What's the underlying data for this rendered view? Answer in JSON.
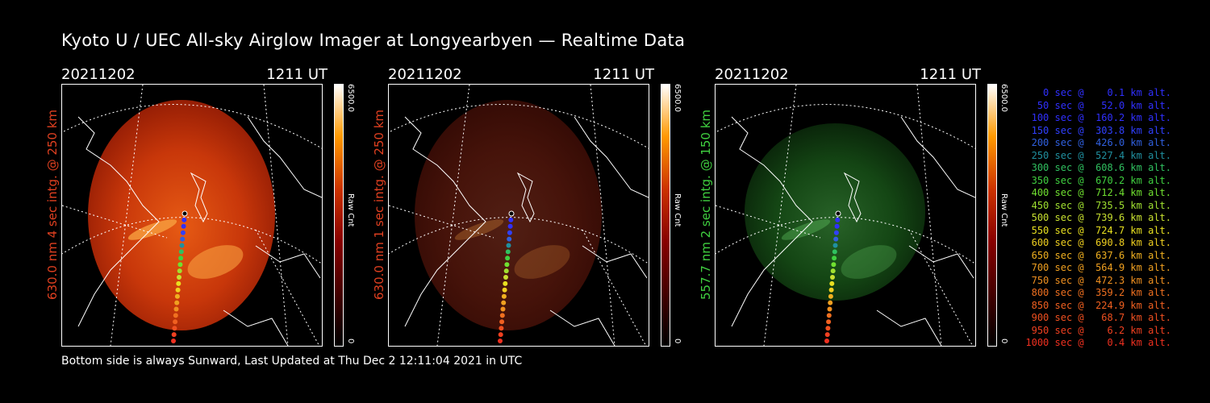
{
  "title": "Kyoto U / UEC All-sky Airglow Imager at Longyearbyen — Realtime Data",
  "footer": "Bottom side is always Sunward, Last Updated at Thu Dec  2 12:11:04 2021 in UTC",
  "colorbar": {
    "max_label": "6500.0",
    "min_label": "0",
    "unit_label": "Raw Cnt"
  },
  "panels": [
    {
      "date": "20211202",
      "time": "1211 UT",
      "side_label": "630.0 nm  4 sec intg. @ 250 km",
      "side_color": "#e04020",
      "tint": "red",
      "brightness": 1.0
    },
    {
      "date": "20211202",
      "time": "1211 UT",
      "side_label": "630.0 nm  1 sec intg. @ 250 km",
      "side_color": "#e04020",
      "tint": "red",
      "brightness": 0.35
    },
    {
      "date": "20211202",
      "time": "1211 UT",
      "side_label": "557.7 nm  2 sec intg. @ 150 km",
      "side_color": "#40d040",
      "tint": "green",
      "brightness": 0.45
    }
  ],
  "trajectory_legend": [
    {
      "text": "0 sec @    0.1 km alt.",
      "color": "#3030ff"
    },
    {
      "text": "50 sec @   52.0 km alt.",
      "color": "#3030ff"
    },
    {
      "text": "100 sec @  160.2 km alt.",
      "color": "#3030ff"
    },
    {
      "text": "150 sec @  303.8 km alt.",
      "color": "#3040ff"
    },
    {
      "text": "200 sec @  426.0 km alt.",
      "color": "#3060e0"
    },
    {
      "text": "250 sec @  527.4 km alt.",
      "color": "#2090a0"
    },
    {
      "text": "300 sec @  608.6 km alt.",
      "color": "#30c060"
    },
    {
      "text": "350 sec @  670.2 km alt.",
      "color": "#40d040"
    },
    {
      "text": "400 sec @  712.4 km alt.",
      "color": "#70e030"
    },
    {
      "text": "450 sec @  735.5 km alt.",
      "color": "#a0e030"
    },
    {
      "text": "500 sec @  739.6 km alt.",
      "color": "#c8e030"
    },
    {
      "text": "550 sec @  724.7 km alt.",
      "color": "#e8e020"
    },
    {
      "text": "600 sec @  690.8 km alt.",
      "color": "#f0d020"
    },
    {
      "text": "650 sec @  637.6 km alt.",
      "color": "#f0b020"
    },
    {
      "text": "700 sec @  564.9 km alt.",
      "color": "#f0a020"
    },
    {
      "text": "750 sec @  472.3 km alt.",
      "color": "#f09020"
    },
    {
      "text": "800 sec @  359.2 km alt.",
      "color": "#f07020"
    },
    {
      "text": "850 sec @  224.9 km alt.",
      "color": "#f06020"
    },
    {
      "text": "900 sec @   68.7 km alt.",
      "color": "#f05020"
    },
    {
      "text": "950 sec @    6.2 km alt.",
      "color": "#f04020"
    },
    {
      "text": "1000 sec @    0.4 km alt.",
      "color": "#f03020"
    }
  ]
}
